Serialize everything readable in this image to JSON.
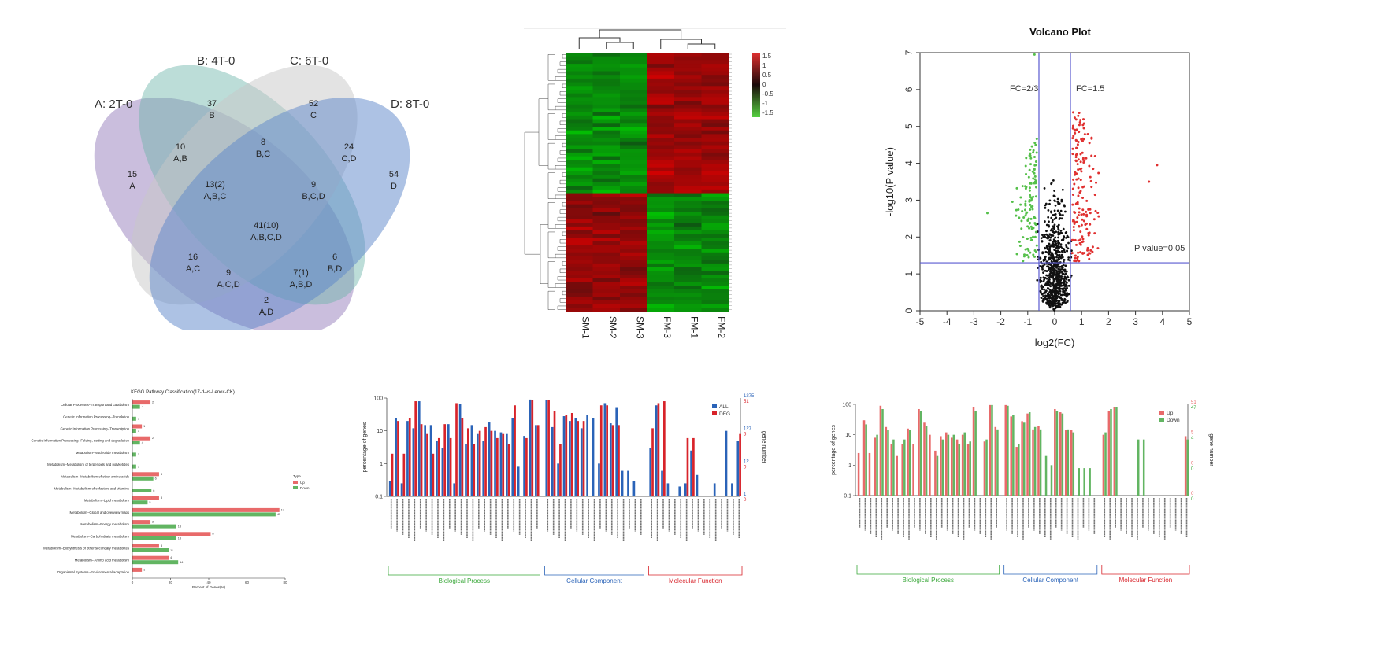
{
  "colors": {
    "heat_red": "#c81e1e",
    "heat_green": "#22b022",
    "up": "#e8262b",
    "down": "#45b048",
    "all": "#2a63b8",
    "deg": "#d8232a",
    "sig": "#2a9a2a",
    "axis_line": "#5a5ad0"
  },
  "venn": {
    "set_labels": [
      "A: 2T-0",
      "B: 4T-0",
      "C: 6T-0",
      "D: 8T-0"
    ],
    "regions": [
      {
        "count": "15",
        "sets": "A"
      },
      {
        "count": "37",
        "sets": "B"
      },
      {
        "count": "52",
        "sets": "C"
      },
      {
        "count": "54",
        "sets": "D"
      },
      {
        "count": "10",
        "sets": "A,B"
      },
      {
        "count": "8",
        "sets": "B,C"
      },
      {
        "count": "24",
        "sets": "C,D"
      },
      {
        "count": "13(2)",
        "sets": "A,B,C"
      },
      {
        "count": "9",
        "sets": "B,C,D"
      },
      {
        "count": "41(10)",
        "sets": "A,B,C,D"
      },
      {
        "count": "16",
        "sets": "A,C"
      },
      {
        "count": "6",
        "sets": "B,D"
      },
      {
        "count": "9",
        "sets": "A,C,D"
      },
      {
        "count": "7(1)",
        "sets": "A,B,D"
      },
      {
        "count": "2",
        "sets": "A,D"
      }
    ]
  },
  "heatmap": {
    "columns": [
      "SM-1",
      "SM-2",
      "SM-3",
      "FM-3",
      "FM-1",
      "FM-2"
    ],
    "legend_ticks": [
      "1.5",
      "1",
      "0.5",
      "0",
      "-0.5",
      "-1",
      "-1.5"
    ]
  },
  "chart_data": [
    {
      "type": "scatter",
      "title": "Volcano Plot",
      "xlabel": "log2(FC)",
      "ylabel": "-log10(P value)",
      "xlim": [
        -5,
        5
      ],
      "ylim": [
        0,
        7
      ],
      "x_ticks": [
        "-5",
        "-4",
        "-3",
        "-2",
        "-1",
        "0",
        "1",
        "2",
        "3",
        "4",
        "5"
      ],
      "y_ticks": [
        "0",
        "1",
        "2",
        "3",
        "4",
        "5",
        "6",
        "7"
      ],
      "vlines": [
        -0.585,
        0.585
      ],
      "hline": 1.3,
      "annotations": [
        "FC=2/3",
        "FC=1.5",
        "P value=0.05"
      ]
    },
    {
      "type": "bar",
      "title": "KEGG Pathway Classification(17-d-vs-Lenox-CK)",
      "xlabel": "Percent of Genes(%)",
      "x_ticks": [
        "0",
        "20",
        "40",
        "60",
        "80"
      ],
      "xlim": [
        0,
        80
      ],
      "legend_title": "Type",
      "categories": [
        "Cellular Processes--Transport and catabolism",
        "Genetic Information Processing--Translation",
        "Genetic Information Processing--Transcription",
        "Genetic Information Processing--Folding, sorting and degradation",
        "Metabolism--Nucleotide metabolism",
        "Metabolism--Metabolism of terpenoids and polyketides",
        "Metabolism--Metabolism of other amino acids",
        "Metabolism--Metabolism of cofactors and vitamins",
        "Metabolism--Lipid metabolism",
        "Metabolism--Global and overview maps",
        "Metabolism--Energy metabolism",
        "Metabolism--Carbohydrate metabolism",
        "Metabolism--Biosynthesis of other secondary metabolites",
        "Metabolism--Amino acid metabolism",
        "Organismal Systems--Environmental adaptation"
      ],
      "series": [
        {
          "name": "Up",
          "values": [
            9.5,
            0,
            5,
            9.5,
            0,
            0,
            14,
            0,
            14,
            77,
            9.5,
            41,
            14,
            19,
            5
          ],
          "labels": [
            "2",
            "",
            "1",
            "2",
            "",
            "",
            "3",
            "",
            "3",
            "17",
            "2",
            "9",
            "3",
            "4",
            "1"
          ]
        },
        {
          "name": "Down",
          "values": [
            4,
            2,
            2,
            4,
            2,
            2,
            11,
            10,
            8,
            75,
            23,
            23,
            19,
            24,
            0
          ],
          "labels": [
            "4",
            "1",
            "1",
            "4",
            "1",
            "1",
            "6",
            "6",
            "5",
            "45",
            "13",
            "13",
            "11",
            "14",
            ""
          ]
        }
      ]
    },
    {
      "type": "bar",
      "ylabel": "percentage of genes",
      "y2label": "gene number",
      "y_ticks": [
        "100",
        "10",
        "1",
        "0.1"
      ],
      "y2_ticks_all": [
        "1275",
        "127",
        "12",
        "1"
      ],
      "y2_ticks_deg": [
        "51",
        "5",
        "0",
        "0"
      ],
      "legend": [
        "ALL",
        "DEG"
      ],
      "groups": [
        "Biological Process",
        "Cellular Component",
        "Molecular Function"
      ],
      "group_sizes": [
        26,
        17,
        16
      ],
      "series": [
        {
          "name": "ALL",
          "values": [
            0.3,
            25,
            0.25,
            20,
            12,
            80,
            15,
            15,
            5,
            3,
            16,
            0.25,
            65,
            4,
            15,
            8,
            5,
            18,
            10,
            9,
            8,
            25,
            0.8,
            7,
            90,
            15,
            85,
            13,
            1,
            28,
            20,
            25,
            12,
            30,
            25,
            1,
            70,
            17,
            50,
            0.6,
            0.6,
            0.3,
            0,
            3,
            60,
            0.6,
            0.25,
            0,
            0.2,
            0.25,
            2.5,
            0.45,
            0,
            0,
            0.25,
            0,
            10,
            0.25,
            5
          ]
        },
        {
          "name": "DEG",
          "values": [
            2,
            20,
            2,
            25,
            80,
            16,
            8,
            2,
            6,
            16,
            6,
            70,
            25,
            12,
            4,
            10,
            13,
            10,
            6,
            8,
            4,
            60,
            0,
            6,
            85,
            15,
            85,
            40,
            4,
            30,
            35,
            20,
            20,
            0,
            0,
            60,
            60,
            15,
            15,
            0,
            0,
            0,
            0,
            12,
            70,
            80,
            0,
            0,
            0,
            6,
            6,
            0,
            0,
            0,
            0,
            0,
            0,
            0,
            8
          ]
        }
      ]
    },
    {
      "type": "bar",
      "ylabel": "percentage of genes",
      "y2label": "gene number",
      "y_ticks": [
        "100",
        "10",
        "1",
        "0.1"
      ],
      "y2_ticks_up": [
        "51",
        "5",
        "0",
        "0"
      ],
      "y2_ticks_down": [
        "47",
        "4",
        "0",
        "0"
      ],
      "legend": [
        "Up",
        "Down"
      ],
      "groups": [
        "Biological Process",
        "Cellular Component",
        "Molecular Function"
      ],
      "group_sizes": [
        26,
        17,
        16
      ],
      "series": [
        {
          "name": "Up",
          "values": [
            2.5,
            30,
            2.5,
            8,
            90,
            18,
            5,
            2,
            5,
            16,
            5,
            70,
            25,
            10,
            3,
            9,
            12,
            8,
            7,
            10,
            5,
            80,
            0,
            6,
            95,
            18,
            95,
            40,
            4,
            28,
            50,
            15,
            20,
            0,
            0,
            70,
            55,
            14,
            14,
            0,
            0,
            0,
            0,
            10,
            60,
            80,
            0,
            0,
            0,
            0,
            0,
            0,
            0,
            0,
            0,
            0,
            0,
            0,
            9
          ]
        },
        {
          "name": "Down",
          "values": [
            0,
            22,
            0,
            10,
            70,
            14,
            7,
            0,
            7,
            14,
            0,
            60,
            20,
            0,
            2,
            7,
            10,
            10,
            5,
            12,
            6,
            60,
            0,
            7,
            95,
            15,
            90,
            45,
            5,
            25,
            55,
            18,
            15,
            2,
            1,
            60,
            50,
            15,
            12,
            0.8,
            0.8,
            0.8,
            0,
            12,
            70,
            80,
            0,
            0,
            0,
            7,
            7,
            0,
            0,
            0,
            0,
            0,
            0,
            0,
            7
          ]
        }
      ]
    }
  ]
}
